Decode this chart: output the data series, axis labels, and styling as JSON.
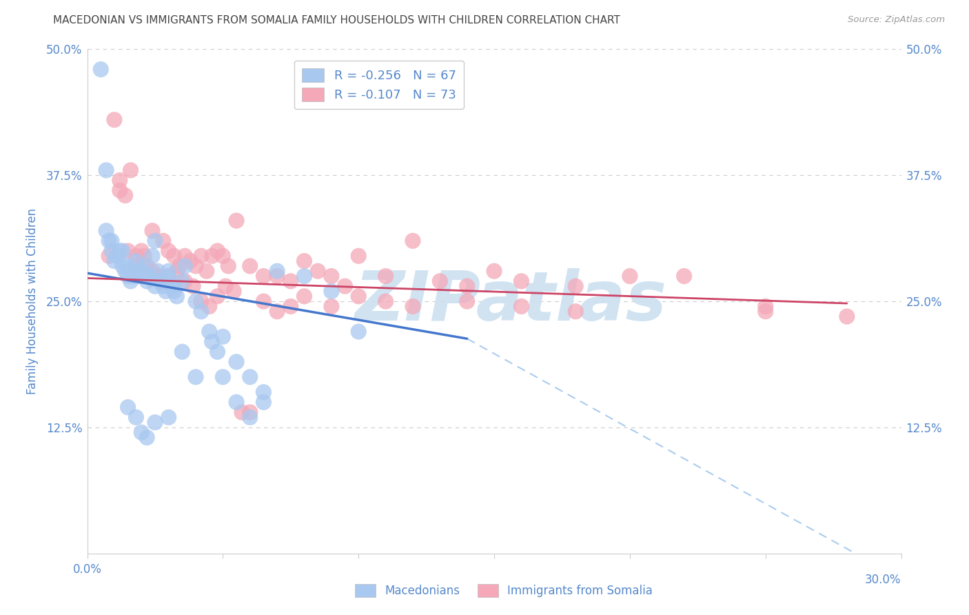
{
  "title": "MACEDONIAN VS IMMIGRANTS FROM SOMALIA FAMILY HOUSEHOLDS WITH CHILDREN CORRELATION CHART",
  "source": "Source: ZipAtlas.com",
  "ylabel": "Family Households with Children",
  "ytick_labels": [
    "0.0%",
    "12.5%",
    "25.0%",
    "37.5%",
    "50.0%"
  ],
  "ytick_values": [
    0.0,
    0.125,
    0.25,
    0.375,
    0.5
  ],
  "xtick_values": [
    0.0,
    0.05,
    0.1,
    0.15,
    0.2,
    0.25,
    0.3
  ],
  "xmin": 0.0,
  "xmax": 0.3,
  "ymin": 0.0,
  "ymax": 0.5,
  "legend_entries": [
    {
      "label": "R = -0.256   N = 67",
      "color": "#a8c8f0"
    },
    {
      "label": "R = -0.107   N = 73",
      "color": "#f4a8b8"
    }
  ],
  "macedonian_color": "#a8c8f0",
  "somalia_color": "#f4a8b8",
  "macedonian_scatter_x": [
    0.005,
    0.007,
    0.008,
    0.009,
    0.01,
    0.011,
    0.012,
    0.013,
    0.014,
    0.015,
    0.016,
    0.017,
    0.018,
    0.019,
    0.02,
    0.021,
    0.022,
    0.023,
    0.024,
    0.025,
    0.026,
    0.027,
    0.028,
    0.029,
    0.03,
    0.031,
    0.032,
    0.033,
    0.035,
    0.036,
    0.04,
    0.042,
    0.045,
    0.046,
    0.048,
    0.05,
    0.055,
    0.06,
    0.065,
    0.007,
    0.009,
    0.011,
    0.013,
    0.015,
    0.017,
    0.02,
    0.022,
    0.025,
    0.028,
    0.03,
    0.032,
    0.015,
    0.018,
    0.02,
    0.022,
    0.025,
    0.03,
    0.035,
    0.04,
    0.05,
    0.055,
    0.06,
    0.065,
    0.07,
    0.08,
    0.09,
    0.1
  ],
  "macedonian_scatter_y": [
    0.48,
    0.38,
    0.31,
    0.3,
    0.29,
    0.295,
    0.3,
    0.285,
    0.28,
    0.275,
    0.27,
    0.28,
    0.29,
    0.275,
    0.28,
    0.285,
    0.27,
    0.275,
    0.295,
    0.31,
    0.28,
    0.27,
    0.265,
    0.26,
    0.275,
    0.265,
    0.26,
    0.255,
    0.27,
    0.285,
    0.25,
    0.24,
    0.22,
    0.21,
    0.2,
    0.215,
    0.19,
    0.175,
    0.16,
    0.32,
    0.31,
    0.295,
    0.3,
    0.285,
    0.275,
    0.28,
    0.275,
    0.265,
    0.27,
    0.28,
    0.265,
    0.145,
    0.135,
    0.12,
    0.115,
    0.13,
    0.135,
    0.2,
    0.175,
    0.175,
    0.15,
    0.135,
    0.15,
    0.28,
    0.275,
    0.26,
    0.22
  ],
  "somalia_scatter_x": [
    0.008,
    0.01,
    0.012,
    0.014,
    0.016,
    0.018,
    0.02,
    0.022,
    0.024,
    0.026,
    0.028,
    0.03,
    0.032,
    0.034,
    0.036,
    0.038,
    0.04,
    0.042,
    0.044,
    0.046,
    0.048,
    0.05,
    0.052,
    0.055,
    0.06,
    0.065,
    0.07,
    0.075,
    0.08,
    0.085,
    0.09,
    0.095,
    0.1,
    0.11,
    0.12,
    0.13,
    0.14,
    0.15,
    0.16,
    0.18,
    0.2,
    0.22,
    0.25,
    0.012,
    0.015,
    0.018,
    0.021,
    0.024,
    0.027,
    0.03,
    0.033,
    0.036,
    0.039,
    0.042,
    0.045,
    0.048,
    0.051,
    0.054,
    0.057,
    0.06,
    0.065,
    0.07,
    0.075,
    0.08,
    0.09,
    0.1,
    0.11,
    0.12,
    0.14,
    0.16,
    0.18,
    0.25,
    0.28
  ],
  "somalia_scatter_y": [
    0.295,
    0.43,
    0.37,
    0.355,
    0.38,
    0.295,
    0.3,
    0.285,
    0.32,
    0.275,
    0.31,
    0.3,
    0.295,
    0.285,
    0.295,
    0.29,
    0.285,
    0.295,
    0.28,
    0.295,
    0.3,
    0.295,
    0.285,
    0.33,
    0.285,
    0.275,
    0.275,
    0.27,
    0.29,
    0.28,
    0.275,
    0.265,
    0.295,
    0.275,
    0.31,
    0.27,
    0.265,
    0.28,
    0.27,
    0.265,
    0.275,
    0.275,
    0.24,
    0.36,
    0.3,
    0.285,
    0.295,
    0.28,
    0.275,
    0.275,
    0.28,
    0.27,
    0.265,
    0.25,
    0.245,
    0.255,
    0.265,
    0.26,
    0.14,
    0.14,
    0.25,
    0.24,
    0.245,
    0.255,
    0.245,
    0.255,
    0.25,
    0.245,
    0.25,
    0.245,
    0.24,
    0.245,
    0.235
  ],
  "blue_line_x": [
    0.0,
    0.14
  ],
  "blue_line_y": [
    0.278,
    0.213
  ],
  "pink_line_x": [
    0.0,
    0.28
  ],
  "pink_line_y": [
    0.273,
    0.248
  ],
  "dashed_line_x": [
    0.14,
    0.3
  ],
  "dashed_line_y": [
    0.213,
    -0.025
  ],
  "watermark": "ZIPatlas",
  "watermark_color": "#cce0f0",
  "grid_color": "#cccccc",
  "title_color": "#444444",
  "axis_label_color": "#5588cc",
  "background_color": "#ffffff",
  "legend_mac_label": "Macedonians",
  "legend_som_label": "Immigrants from Somalia"
}
